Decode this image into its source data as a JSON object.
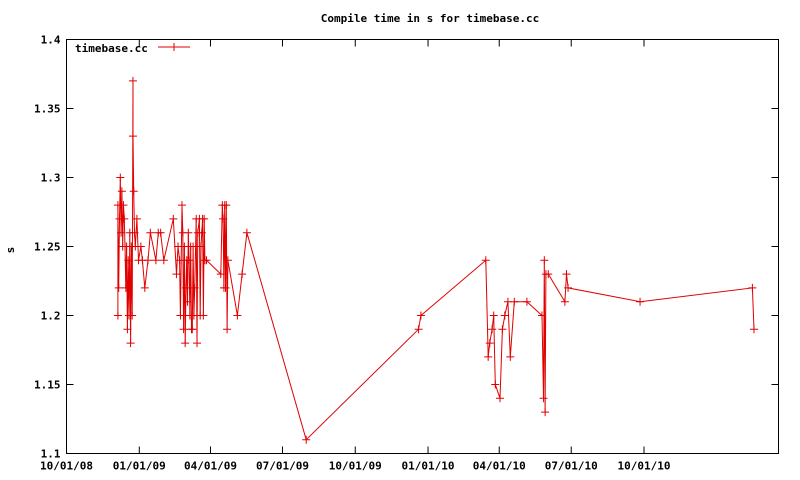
{
  "chart_data": {
    "type": "line",
    "title": "Compile time in s for timebase.cc",
    "xlabel": "",
    "ylabel": "s",
    "x_axis_type": "date",
    "xlim": [
      "2008-10-01",
      "2011-03-20"
    ],
    "ylim": [
      1.1,
      1.4
    ],
    "x_ticks": [
      {
        "value": "2008-10-01",
        "label": "10/01/08"
      },
      {
        "value": "2009-01-01",
        "label": "01/01/09"
      },
      {
        "value": "2009-04-01",
        "label": "04/01/09"
      },
      {
        "value": "2009-07-01",
        "label": "07/01/09"
      },
      {
        "value": "2009-10-01",
        "label": "10/01/09"
      },
      {
        "value": "2010-01-01",
        "label": "01/01/10"
      },
      {
        "value": "2010-04-01",
        "label": "04/01/10"
      },
      {
        "value": "2010-07-01",
        "label": "07/01/10"
      },
      {
        "value": "2010-10-01",
        "label": "10/01/10"
      }
    ],
    "y_ticks": [
      {
        "value": 1.1,
        "label": "1.1"
      },
      {
        "value": 1.15,
        "label": "1.15"
      },
      {
        "value": 1.2,
        "label": "1.2"
      },
      {
        "value": 1.25,
        "label": "1.25"
      },
      {
        "value": 1.3,
        "label": "1.3"
      },
      {
        "value": 1.35,
        "label": "1.35"
      },
      {
        "value": 1.4,
        "label": "1.4"
      }
    ],
    "grid": false,
    "legend_position": "top-left",
    "series": [
      {
        "name": "timebase.cc",
        "color": "#e00000",
        "marker": "plus",
        "points": [
          [
            "2008-12-05",
            1.2
          ],
          [
            "2008-12-05",
            1.28
          ],
          [
            "2008-12-06",
            1.22
          ],
          [
            "2008-12-07",
            1.27
          ],
          [
            "2008-12-08",
            1.3
          ],
          [
            "2008-12-09",
            1.26
          ],
          [
            "2008-12-10",
            1.29
          ],
          [
            "2008-12-11",
            1.25
          ],
          [
            "2008-12-12",
            1.28
          ],
          [
            "2008-12-13",
            1.27
          ],
          [
            "2008-12-14",
            1.25
          ],
          [
            "2008-12-15",
            1.22
          ],
          [
            "2008-12-16",
            1.25
          ],
          [
            "2008-12-17",
            1.19
          ],
          [
            "2008-12-18",
            1.24
          ],
          [
            "2008-12-19",
            1.2
          ],
          [
            "2008-12-20",
            1.26
          ],
          [
            "2008-12-21",
            1.18
          ],
          [
            "2008-12-22",
            1.25
          ],
          [
            "2008-12-23",
            1.2
          ],
          [
            "2008-12-24",
            1.37
          ],
          [
            "2008-12-24",
            1.33
          ],
          [
            "2008-12-25",
            1.29
          ],
          [
            "2008-12-26",
            1.26
          ],
          [
            "2008-12-27",
            1.25
          ],
          [
            "2008-12-29",
            1.27
          ],
          [
            "2008-12-31",
            1.24
          ],
          [
            "2009-01-03",
            1.25
          ],
          [
            "2009-01-05",
            1.24
          ],
          [
            "2009-01-08",
            1.22
          ],
          [
            "2009-01-12",
            1.24
          ],
          [
            "2009-01-15",
            1.26
          ],
          [
            "2009-01-22",
            1.24
          ],
          [
            "2009-01-25",
            1.26
          ],
          [
            "2009-01-28",
            1.26
          ],
          [
            "2009-02-01",
            1.24
          ],
          [
            "2009-02-13",
            1.27
          ],
          [
            "2009-02-17",
            1.23
          ],
          [
            "2009-02-19",
            1.25
          ],
          [
            "2009-02-21",
            1.24
          ],
          [
            "2009-02-22",
            1.2
          ],
          [
            "2009-02-24",
            1.28
          ],
          [
            "2009-02-25",
            1.26
          ],
          [
            "2009-02-26",
            1.19
          ],
          [
            "2009-02-27",
            1.25
          ],
          [
            "2009-02-28",
            1.18
          ],
          [
            "2009-03-01",
            1.22
          ],
          [
            "2009-03-02",
            1.24
          ],
          [
            "2009-03-03",
            1.21
          ],
          [
            "2009-03-04",
            1.26
          ],
          [
            "2009-03-05",
            1.24
          ],
          [
            "2009-03-06",
            1.2
          ],
          [
            "2009-03-07",
            1.25
          ],
          [
            "2009-03-08",
            1.19
          ],
          [
            "2009-03-09",
            1.19
          ],
          [
            "2009-03-10",
            1.25
          ],
          [
            "2009-03-11",
            1.2
          ],
          [
            "2009-03-12",
            1.22
          ],
          [
            "2009-03-14",
            1.27
          ],
          [
            "2009-03-15",
            1.18
          ],
          [
            "2009-03-16",
            1.26
          ],
          [
            "2009-03-18",
            1.27
          ],
          [
            "2009-03-19",
            1.2
          ],
          [
            "2009-03-20",
            1.25
          ],
          [
            "2009-03-21",
            1.26
          ],
          [
            "2009-03-22",
            1.27
          ],
          [
            "2009-03-23",
            1.2
          ],
          [
            "2009-03-24",
            1.27
          ],
          [
            "2009-03-25",
            1.24
          ],
          [
            "2009-03-27",
            1.24
          ],
          [
            "2009-04-14",
            1.23
          ],
          [
            "2009-04-16",
            1.28
          ],
          [
            "2009-04-17",
            1.27
          ],
          [
            "2009-04-18",
            1.22
          ],
          [
            "2009-04-19",
            1.28
          ],
          [
            "2009-04-20",
            1.22
          ],
          [
            "2009-04-21",
            1.28
          ],
          [
            "2009-04-22",
            1.19
          ],
          [
            "2009-04-23",
            1.24
          ],
          [
            "2009-05-05",
            1.2
          ],
          [
            "2009-05-11",
            1.23
          ],
          [
            "2009-05-17",
            1.26
          ],
          [
            "2009-07-31",
            1.11
          ],
          [
            "2009-12-20",
            1.19
          ],
          [
            "2009-12-23",
            1.2
          ],
          [
            "2010-03-15",
            1.24
          ],
          [
            "2010-03-18",
            1.17
          ],
          [
            "2010-03-20",
            1.18
          ],
          [
            "2010-03-23",
            1.19
          ],
          [
            "2010-03-25",
            1.2
          ],
          [
            "2010-03-27",
            1.15
          ],
          [
            "2010-04-02",
            1.14
          ],
          [
            "2010-04-05",
            1.19
          ],
          [
            "2010-04-08",
            1.2
          ],
          [
            "2010-04-12",
            1.21
          ],
          [
            "2010-04-15",
            1.17
          ],
          [
            "2010-04-20",
            1.21
          ],
          [
            "2010-05-06",
            1.21
          ],
          [
            "2010-05-25",
            1.2
          ],
          [
            "2010-05-27",
            1.14
          ],
          [
            "2010-05-28",
            1.24
          ],
          [
            "2010-05-29",
            1.13
          ],
          [
            "2010-05-30",
            1.23
          ],
          [
            "2010-06-02",
            1.23
          ],
          [
            "2010-06-23",
            1.21
          ],
          [
            "2010-06-25",
            1.23
          ],
          [
            "2010-06-27",
            1.22
          ],
          [
            "2010-09-26",
            1.21
          ],
          [
            "2011-02-15",
            1.22
          ],
          [
            "2011-02-17",
            1.19
          ]
        ]
      }
    ]
  }
}
